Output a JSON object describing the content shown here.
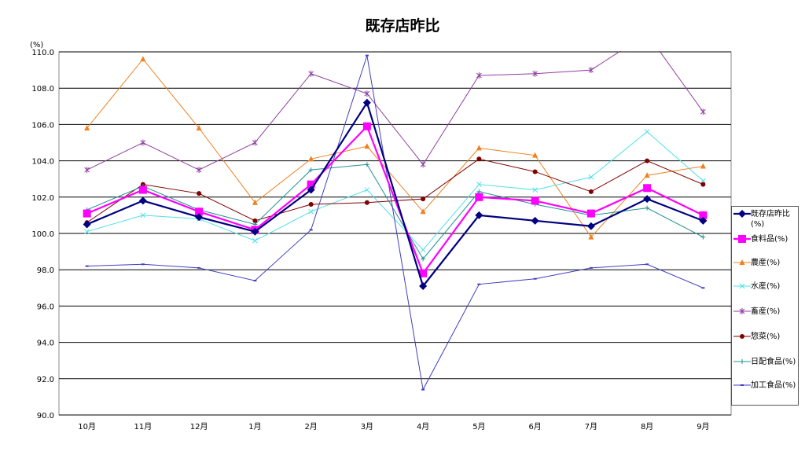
{
  "chart_data": {
    "type": "line",
    "title": "既存店昨比",
    "ylabel": "(%)",
    "ylim": [
      90,
      110
    ],
    "yticks": [
      "90.0",
      "92.0",
      "94.0",
      "96.0",
      "98.0",
      "100.0",
      "102.0",
      "104.0",
      "106.0",
      "108.0",
      "110.0"
    ],
    "categories": [
      "10月",
      "11月",
      "12月",
      "1月",
      "2月",
      "3月",
      "4月",
      "5月",
      "6月",
      "7月",
      "8月",
      "9月"
    ],
    "legend_position": "right",
    "series": [
      {
        "name": "既存店昨比(%)",
        "color": "#000080",
        "marker": "diamond",
        "width": 2.2,
        "values": [
          100.5,
          101.8,
          100.9,
          100.1,
          102.4,
          107.2,
          97.1,
          101.0,
          100.7,
          100.4,
          101.9,
          100.7
        ]
      },
      {
        "name": "食料品(%)",
        "color": "#ff00ff",
        "marker": "square",
        "width": 2.2,
        "values": [
          101.1,
          102.4,
          101.2,
          100.2,
          102.7,
          105.9,
          97.8,
          102.0,
          101.8,
          101.1,
          102.5,
          101.0
        ]
      },
      {
        "name": "農産(%)",
        "color": "#f08020",
        "marker": "triangle",
        "width": 1,
        "values": [
          105.8,
          109.6,
          105.8,
          101.7,
          104.1,
          104.8,
          101.2,
          104.7,
          104.3,
          99.8,
          103.2,
          103.7
        ]
      },
      {
        "name": "水産(%)",
        "color": "#50e0e8",
        "marker": "x",
        "width": 1,
        "values": [
          100.1,
          101.0,
          100.8,
          99.6,
          101.2,
          102.4,
          99.1,
          102.7,
          102.4,
          103.1,
          105.6,
          102.9
        ]
      },
      {
        "name": "畜産(%)",
        "color": "#9040a0",
        "marker": "star",
        "width": 1,
        "values": [
          103.5,
          105.0,
          103.5,
          105.0,
          108.8,
          107.7,
          103.8,
          108.7,
          108.8,
          109.0,
          111.0,
          106.7
        ]
      },
      {
        "name": "惣菜(%)",
        "color": "#800000",
        "marker": "circle",
        "width": 1,
        "values": [
          100.6,
          102.7,
          102.2,
          100.7,
          101.6,
          101.7,
          101.9,
          104.1,
          103.4,
          102.3,
          104.0,
          102.7
        ]
      },
      {
        "name": "日配食品(%)",
        "color": "#209090",
        "marker": "plus",
        "width": 1,
        "values": [
          101.3,
          102.6,
          101.3,
          100.5,
          103.5,
          103.8,
          98.6,
          102.3,
          101.6,
          101.0,
          101.4,
          99.8
        ]
      },
      {
        "name": "加工食品(%)",
        "color": "#4040c0",
        "marker": "dash",
        "width": 1,
        "values": [
          98.2,
          98.3,
          98.1,
          97.4,
          100.2,
          109.8,
          91.4,
          97.2,
          97.5,
          98.1,
          98.3,
          97.0
        ]
      }
    ]
  }
}
